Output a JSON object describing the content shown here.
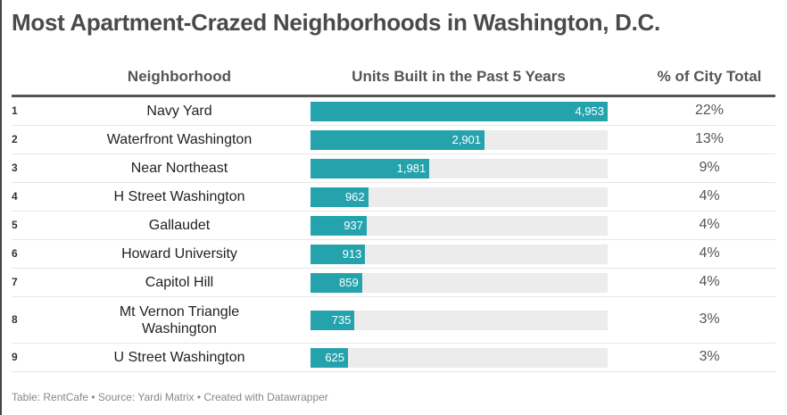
{
  "title": "Most Apartment-Crazed Neighborhoods in Washington, D.C.",
  "footer": "Table: RentCafe • Source: Yardi Matrix • Created with Datawrapper",
  "colors": {
    "bar": "#25a3ad",
    "track": "#ececec"
  },
  "chart_data": {
    "type": "table",
    "columns": [
      "Neighborhood",
      "Units Built in the Past 5 Years",
      "% of City Total"
    ],
    "bar_max": 4953,
    "rows": [
      {
        "rank": "1",
        "neighborhood": "Navy Yard",
        "units": 4953,
        "units_label": "4,953",
        "pct": "22%"
      },
      {
        "rank": "2",
        "neighborhood": "Waterfront Washington",
        "units": 2901,
        "units_label": "2,901",
        "pct": "13%"
      },
      {
        "rank": "3",
        "neighborhood": "Near Northeast",
        "units": 1981,
        "units_label": "1,981",
        "pct": "9%"
      },
      {
        "rank": "4",
        "neighborhood": "H Street Washington",
        "units": 962,
        "units_label": "962",
        "pct": "4%"
      },
      {
        "rank": "5",
        "neighborhood": "Gallaudet",
        "units": 937,
        "units_label": "937",
        "pct": "4%"
      },
      {
        "rank": "6",
        "neighborhood": "Howard University",
        "units": 913,
        "units_label": "913",
        "pct": "4%"
      },
      {
        "rank": "7",
        "neighborhood": "Capitol Hill",
        "units": 859,
        "units_label": "859",
        "pct": "4%"
      },
      {
        "rank": "8",
        "neighborhood": "Mt Vernon Triangle Washington",
        "units": 735,
        "units_label": "735",
        "pct": "3%"
      },
      {
        "rank": "9",
        "neighborhood": "U Street Washington",
        "units": 625,
        "units_label": "625",
        "pct": "3%"
      }
    ]
  }
}
